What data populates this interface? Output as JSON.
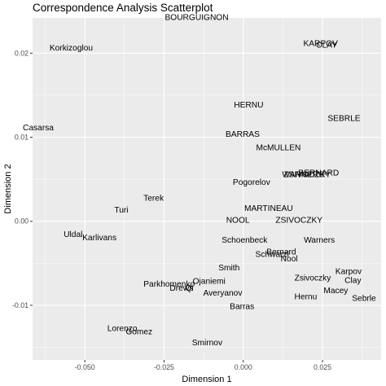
{
  "chart_data": {
    "type": "scatter",
    "title": "Correspondence Analysis Scatterplot",
    "xlabel": "Dimension 1",
    "ylabel": "Dimension 2",
    "xlim": [
      -0.0665,
      0.0435
    ],
    "ylim": [
      -0.0165,
      0.0242
    ],
    "x_ticks": [
      -0.05,
      -0.025,
      0.0,
      0.025
    ],
    "x_tick_labels": [
      "-0.050",
      "-0.025",
      "0.000",
      "0.025"
    ],
    "y_ticks": [
      -0.01,
      0.0,
      0.01,
      0.02
    ],
    "y_tick_labels": [
      "-0.01",
      "0.00",
      "0.01",
      "0.02"
    ],
    "grid": true,
    "background": "#ebebeb",
    "grid_color": "#ffffff",
    "points": [
      {
        "label": "BOURGUIGNON",
        "x": -0.0147,
        "y": 0.0242
      },
      {
        "label": "Korkizoglou",
        "x": -0.0543,
        "y": 0.0206
      },
      {
        "label": "KARPOV",
        "x": 0.0244,
        "y": 0.0211
      },
      {
        "label": "CLAY",
        "x": 0.0263,
        "y": 0.0209
      },
      {
        "label": "HERNU",
        "x": 0.0017,
        "y": 0.0138
      },
      {
        "label": "SEBRLE",
        "x": 0.0318,
        "y": 0.0122
      },
      {
        "label": "Casarsa",
        "x": -0.0647,
        "y": 0.0111
      },
      {
        "label": "BARRAS",
        "x": -0.0002,
        "y": 0.0103
      },
      {
        "label": "McMULLEN",
        "x": 0.0111,
        "y": 0.0087
      },
      {
        "label": "BERNARD",
        "x": 0.0238,
        "y": 0.0057
      },
      {
        "label": "WARNERS",
        "x": 0.0189,
        "y": 0.0055
      },
      {
        "label": "ZSIVOCZKY",
        "x": 0.0202,
        "y": 0.0055
      },
      {
        "label": "Pogorelov",
        "x": 0.0026,
        "y": 0.0046
      },
      {
        "label": "Terek",
        "x": -0.0283,
        "y": 0.0027
      },
      {
        "label": "Turi",
        "x": -0.0385,
        "y": 0.0013
      },
      {
        "label": "MARTINEAU",
        "x": 0.008,
        "y": 0.0015
      },
      {
        "label": "NOOL",
        "x": -0.0017,
        "y": 0.0001
      },
      {
        "label": "ZSIVOCZKY",
        "x": 0.0176,
        "y": 0.0001
      },
      {
        "label": "Uldal",
        "x": -0.0537,
        "y": -0.0016
      },
      {
        "label": "Karlivans",
        "x": -0.0454,
        "y": -0.002
      },
      {
        "label": "Schoenbeck",
        "x": 0.0004,
        "y": -0.0023
      },
      {
        "label": "Warners",
        "x": 0.024,
        "y": -0.0023
      },
      {
        "label": "Bernard",
        "x": 0.012,
        "y": -0.0037
      },
      {
        "label": "Schwarzl",
        "x": 0.0091,
        "y": -0.004
      },
      {
        "label": "Nool",
        "x": 0.0145,
        "y": -0.0045
      },
      {
        "label": "Smith",
        "x": -0.0045,
        "y": -0.0056
      },
      {
        "label": "Karpov",
        "x": 0.0332,
        "y": -0.006
      },
      {
        "label": "Zsivoczky",
        "x": 0.0219,
        "y": -0.0068
      },
      {
        "label": "Clay",
        "x": 0.0346,
        "y": -0.0071
      },
      {
        "label": "Parkhomenko",
        "x": -0.0234,
        "y": -0.0075
      },
      {
        "label": "Ojaniemi",
        "x": -0.0108,
        "y": -0.0072
      },
      {
        "label": "Drews",
        "x": -0.0195,
        "y": -0.008
      },
      {
        "label": "Qi",
        "x": -0.017,
        "y": -0.008
      },
      {
        "label": "Averyanov",
        "x": -0.0065,
        "y": -0.0086
      },
      {
        "label": "Macey",
        "x": 0.0292,
        "y": -0.0083
      },
      {
        "label": "Hernu",
        "x": 0.0197,
        "y": -0.009
      },
      {
        "label": "Sebrle",
        "x": 0.0381,
        "y": -0.0092
      },
      {
        "label": "Barras",
        "x": -0.0004,
        "y": -0.0102
      },
      {
        "label": "Lorenzo",
        "x": -0.0382,
        "y": -0.0128
      },
      {
        "label": "Gomez",
        "x": -0.0329,
        "y": -0.0132
      },
      {
        "label": "Smirnov",
        "x": -0.0114,
        "y": -0.0145
      }
    ]
  }
}
